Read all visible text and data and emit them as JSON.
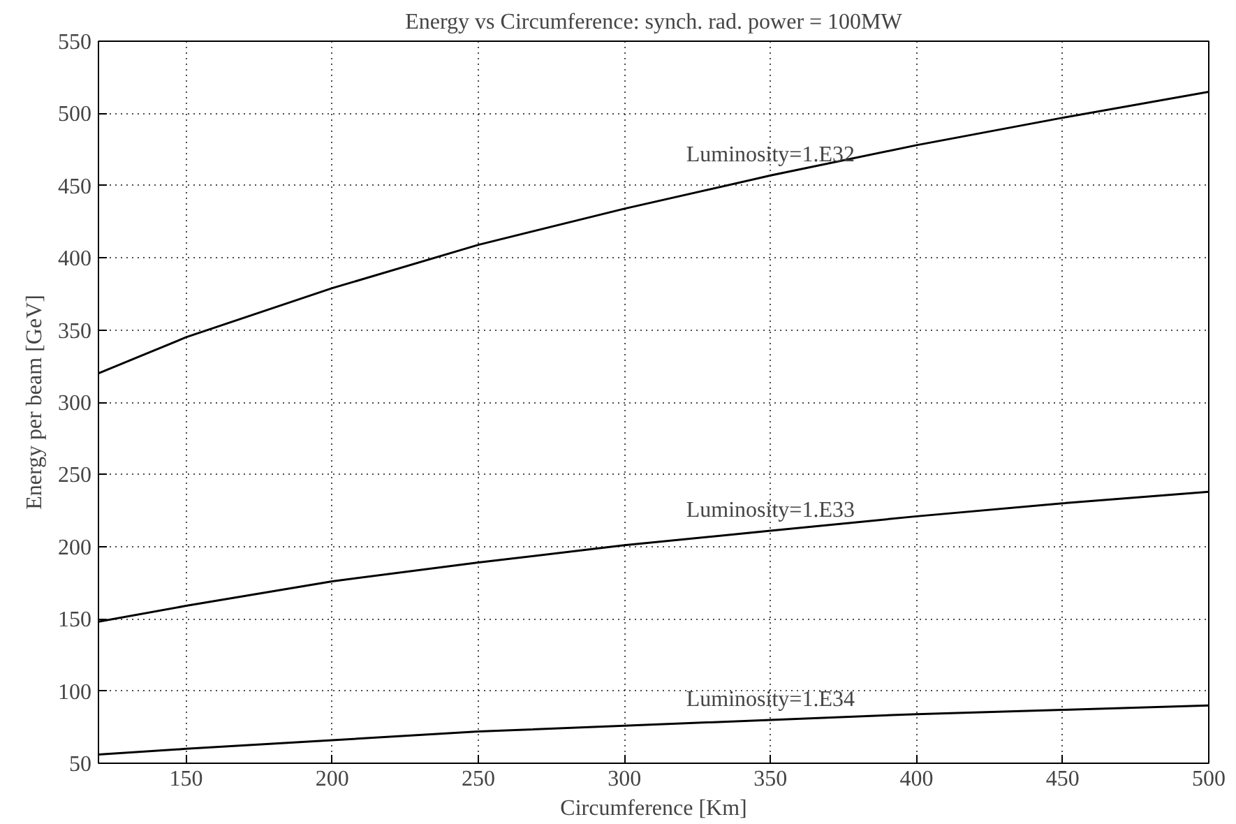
{
  "chart_data": {
    "type": "line",
    "title": "Energy vs Circumference: synch. rad. power = 100MW",
    "xlabel": "Circumference [Km]",
    "ylabel": "Energy per beam [GeV]",
    "x": [
      120,
      150,
      200,
      250,
      300,
      350,
      400,
      450,
      500
    ],
    "series": [
      {
        "name": "Luminosity=1.E32",
        "color": "#000000",
        "values": [
          320,
          345,
          379,
          409,
          434,
          457,
          478,
          497,
          515
        ]
      },
      {
        "name": "Luminosity=1.E33",
        "color": "#000000",
        "values": [
          148,
          159,
          176,
          189,
          201,
          211,
          221,
          230,
          238
        ]
      },
      {
        "name": "Luminosity=1.E34",
        "color": "#000000",
        "values": [
          56,
          60,
          66,
          72,
          76,
          80,
          84,
          87,
          90
        ]
      }
    ],
    "xlim": [
      120,
      500
    ],
    "xticks": [
      150,
      200,
      250,
      300,
      350,
      400,
      450,
      500
    ],
    "ylim": [
      50,
      550
    ],
    "yticks": [
      50,
      100,
      150,
      200,
      250,
      300,
      350,
      400,
      450,
      500,
      550
    ],
    "grid": true,
    "marker": "none",
    "line_style": "solid"
  }
}
